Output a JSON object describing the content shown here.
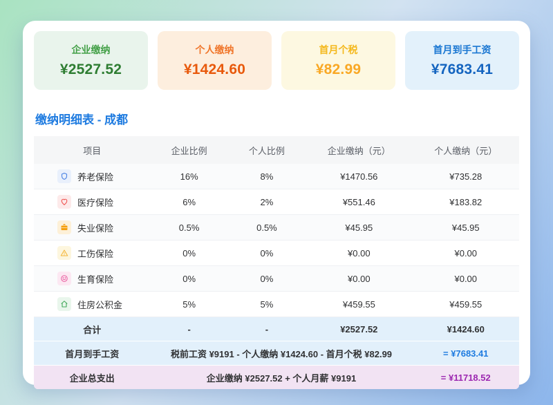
{
  "summary_cards": [
    {
      "label": "企业缴纳",
      "value": "¥2527.52",
      "bg": "#e9f4ec",
      "label_color": "#43a047",
      "value_color": "#2e7d32"
    },
    {
      "label": "个人缴纳",
      "value": "¥1424.60",
      "bg": "#fdeede",
      "label_color": "#f0762b",
      "value_color": "#e8590c"
    },
    {
      "label": "首月个税",
      "value": "¥82.99",
      "bg": "#fdf8e1",
      "label_color": "#f4b81c",
      "value_color": "#f9a825"
    },
    {
      "label": "首月到手工资",
      "value": "¥7683.41",
      "bg": "#e3f1fb",
      "label_color": "#1976d2",
      "value_color": "#1565c0"
    }
  ],
  "section": {
    "title": "缴纳明细表 - 成都",
    "title_color": "#1e7be0"
  },
  "table": {
    "headers": [
      "项目",
      "企业比例",
      "个人比例",
      "企业缴纳（元）",
      "个人缴纳（元）"
    ],
    "rows": [
      {
        "icon": "shield-icon",
        "icon_color": "#4a82e4",
        "icon_bg": "#e9f0fc",
        "name": "养老保险",
        "corp_rate": "16%",
        "personal_rate": "8%",
        "corp_amount": "¥1470.56",
        "personal_amount": "¥735.28"
      },
      {
        "icon": "heart-icon",
        "icon_color": "#ef5350",
        "icon_bg": "#fdeaea",
        "name": "医疗保险",
        "corp_rate": "6%",
        "personal_rate": "2%",
        "corp_amount": "¥551.46",
        "personal_amount": "¥183.82"
      },
      {
        "icon": "briefcase-icon",
        "icon_color": "#f59e0b",
        "icon_bg": "#fdf0d8",
        "name": "失业保险",
        "corp_rate": "0.5%",
        "personal_rate": "0.5%",
        "corp_amount": "¥45.95",
        "personal_amount": "¥45.95"
      },
      {
        "icon": "warning-triangle-icon",
        "icon_color": "#f5b73a",
        "icon_bg": "#fdf6de",
        "name": "工伤保险",
        "corp_rate": "0%",
        "personal_rate": "0%",
        "corp_amount": "¥0.00",
        "personal_amount": "¥0.00"
      },
      {
        "icon": "smiley-face-icon",
        "icon_color": "#e85a9e",
        "icon_bg": "#fce8f2",
        "name": "生育保险",
        "corp_rate": "0%",
        "personal_rate": "0%",
        "corp_amount": "¥0.00",
        "personal_amount": "¥0.00"
      },
      {
        "icon": "home-icon",
        "icon_color": "#43a85c",
        "icon_bg": "#e9f6ec",
        "name": "住房公积金",
        "corp_rate": "5%",
        "personal_rate": "5%",
        "corp_amount": "¥459.55",
        "personal_amount": "¥459.55"
      }
    ],
    "total_row": {
      "label": "合计",
      "corp_rate": "-",
      "personal_rate": "-",
      "corp_amount": "¥2527.52",
      "personal_amount": "¥1424.60"
    },
    "takehome_row": {
      "label": "首月到手工资",
      "formula": "税前工资 ¥9191 - 个人缴纳 ¥1424.60 - 首月个税 ¥82.99",
      "result": "= ¥7683.41",
      "result_color": "#1e7be0"
    },
    "expense_row": {
      "label": "企业总支出",
      "formula": "企业缴纳 ¥2527.52 + 个人月薪 ¥9191",
      "result": "= ¥11718.52",
      "result_color": "#9c27b0"
    }
  }
}
